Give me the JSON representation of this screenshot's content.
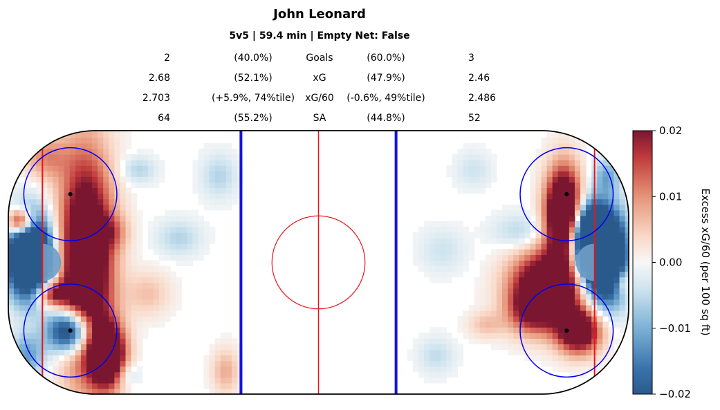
{
  "chart_data": {
    "type": "heatmap",
    "title": "John Leonard",
    "subtitle": "5v5 | 59.4 min | Empty Net: False",
    "stats": [
      {
        "left_value": "2",
        "left_pct": "(40.0%)",
        "label": "Goals",
        "right_pct": "(60.0%)",
        "right_value": "3"
      },
      {
        "left_value": "2.68",
        "left_pct": "(52.1%)",
        "label": "xG",
        "right_pct": "(47.9%)",
        "right_value": "2.46"
      },
      {
        "left_value": "2.703",
        "left_pct": "(+5.9%, 74%tile)",
        "label": "xG/60",
        "right_pct": "(-0.6%, 49%tile)",
        "right_value": "2.486"
      },
      {
        "left_value": "64",
        "left_pct": "(55.2%)",
        "label": "SA",
        "right_pct": "(44.8%)",
        "right_value": "52"
      }
    ],
    "colorbar": {
      "label": "Excess xG/60 (per 100 sq ft)",
      "vmin": -0.02,
      "vmax": 0.02,
      "ticks": [
        "0.02",
        "0.01",
        "0.00",
        "−0.01",
        "−0.02"
      ],
      "tick_values": [
        0.02,
        0.01,
        0.0,
        -0.01,
        -0.02
      ],
      "colormap": "RdBu_r"
    },
    "rink": {
      "length_ft": 200,
      "width_ft": 85,
      "corner_radius_ft": 28,
      "goal_line_ft": 11,
      "blue_line_ft": 75,
      "faceoff_circle_radius_ft": 15,
      "faceoff_dot_x_ft": 20,
      "faceoff_dot_y_ft": 22,
      "center_circle_radius_ft": 15,
      "crease_radius_ft": 6,
      "colors": {
        "board": "#000000",
        "red_line": "#e8141b",
        "blue_line": "#1414e0",
        "circle": "#0000ee",
        "dot": "#000000"
      }
    },
    "blobs": {
      "left_zone": [
        {
          "x": 25,
          "y": 0,
          "sx": 6,
          "sy": 24,
          "v": 0.035
        },
        {
          "x": 20,
          "y": -22,
          "sx": 5,
          "sy": 5,
          "v": -0.035
        },
        {
          "x": 7,
          "y": 2,
          "sx": 5,
          "sy": 9,
          "v": -0.05
        },
        {
          "x": 4,
          "y": 13,
          "sx": 3,
          "sy": 3,
          "v": 0.03
        },
        {
          "x": 32,
          "y": -30,
          "sx": 4,
          "sy": 7,
          "v": 0.035
        },
        {
          "x": 14,
          "y": -10,
          "sx": 4,
          "sy": 3,
          "v": 0.02
        },
        {
          "x": 6,
          "y": -30,
          "sx": 4,
          "sy": 5,
          "v": -0.012
        },
        {
          "x": 12,
          "y": 34,
          "sx": 5,
          "sy": 5,
          "v": 0.01
        },
        {
          "x": 33,
          "y": 10,
          "sx": 4,
          "sy": 4,
          "v": 0.008
        },
        {
          "x": 55,
          "y": 8,
          "sx": 5,
          "sy": 4,
          "v": -0.006
        },
        {
          "x": 42,
          "y": 30,
          "sx": 4,
          "sy": 3,
          "v": -0.006
        },
        {
          "x": 45,
          "y": -10,
          "sx": 5,
          "sy": 5,
          "v": 0.006
        },
        {
          "x": 68,
          "y": 28,
          "sx": 4,
          "sy": 5,
          "v": -0.006
        },
        {
          "x": 70,
          "y": -35,
          "sx": 3,
          "sy": 5,
          "v": 0.008
        },
        {
          "x": 38,
          "y": -36,
          "sx": 3,
          "sy": 3,
          "v": -0.006
        }
      ],
      "right_zone": [
        {
          "x": 174,
          "y": -8,
          "sx": 8,
          "sy": 8,
          "v": 0.035
        },
        {
          "x": 184,
          "y": -22,
          "sx": 5,
          "sy": 5,
          "v": 0.03
        },
        {
          "x": 179,
          "y": 16,
          "sx": 4,
          "sy": 10,
          "v": 0.04
        },
        {
          "x": 187,
          "y": 8,
          "sx": 4,
          "sy": 7,
          "v": -0.035
        },
        {
          "x": 192,
          "y": 2,
          "sx": 5,
          "sy": 10,
          "v": -0.05
        },
        {
          "x": 168,
          "y": -16,
          "sx": 5,
          "sy": 5,
          "v": 0.012
        },
        {
          "x": 154,
          "y": -20,
          "sx": 4,
          "sy": 3,
          "v": 0.006
        },
        {
          "x": 165,
          "y": 10,
          "sx": 6,
          "sy": 4,
          "v": -0.006
        },
        {
          "x": 140,
          "y": 4,
          "sx": 5,
          "sy": 5,
          "v": -0.004
        },
        {
          "x": 150,
          "y": 30,
          "sx": 4,
          "sy": 4,
          "v": -0.004
        },
        {
          "x": 198,
          "y": -6,
          "sx": 2,
          "sy": 3,
          "v": 0.012
        },
        {
          "x": 193,
          "y": 28,
          "sx": 3,
          "sy": 4,
          "v": -0.01
        },
        {
          "x": 138,
          "y": -30,
          "sx": 4,
          "sy": 4,
          "v": -0.005
        }
      ]
    }
  }
}
